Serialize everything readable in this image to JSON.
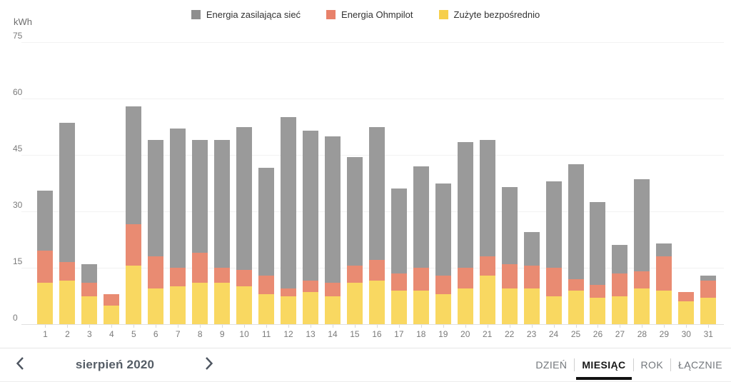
{
  "legend": [
    {
      "key": "grid",
      "label": "Energia zasilająca sieć",
      "color": "#8f8f8f"
    },
    {
      "key": "ohmpilot",
      "label": "Energia Ohmpilot",
      "color": "#e8816a"
    },
    {
      "key": "direct",
      "label": "Zużyte bezpośrednio",
      "color": "#f6cf4b"
    }
  ],
  "chart_data": {
    "type": "bar",
    "stacked": true,
    "ylabel": "kWh",
    "xlabel": "",
    "categories": [
      1,
      2,
      3,
      4,
      5,
      6,
      7,
      8,
      9,
      10,
      11,
      12,
      13,
      14,
      15,
      16,
      17,
      18,
      19,
      20,
      21,
      22,
      23,
      24,
      25,
      26,
      27,
      28,
      29,
      30,
      31
    ],
    "series": [
      {
        "key": "direct",
        "name": "Zużyte bezpośrednio",
        "color": "#f9d861",
        "values": [
          11,
          11.5,
          7.5,
          5,
          15.5,
          9.5,
          10,
          11,
          11,
          10,
          8,
          7.5,
          8.5,
          7.5,
          11,
          11.5,
          9,
          9,
          8,
          9.5,
          13,
          9.5,
          9.5,
          7.5,
          9,
          7,
          7.5,
          9.5,
          9,
          6,
          7
        ]
      },
      {
        "key": "ohmpilot",
        "name": "Energia Ohmpilot",
        "color": "#e98b72",
        "values": [
          8.5,
          5,
          3.5,
          3,
          11,
          8.5,
          5,
          8,
          4,
          4.5,
          5,
          2,
          3,
          3.5,
          4.5,
          5.5,
          4.5,
          6,
          5,
          5.5,
          5,
          6.5,
          6,
          7.5,
          3,
          3.5,
          6,
          4.5,
          9,
          2.5,
          4.5
        ]
      },
      {
        "key": "grid",
        "name": "Energia zasilająca sieć",
        "color": "#9a9a9a",
        "values": [
          16,
          37,
          5,
          0,
          31.5,
          31,
          37,
          30,
          34,
          38,
          28.5,
          45.5,
          40,
          39,
          29,
          35.5,
          22.5,
          27,
          24.5,
          33.5,
          31,
          20.5,
          9,
          23,
          30.5,
          22,
          7.5,
          24.5,
          3.5,
          0,
          1.5
        ]
      }
    ],
    "yticks": [
      0,
      15,
      30,
      45,
      60,
      75
    ],
    "ylim": [
      0,
      75
    ],
    "grid": true,
    "legend_position": "top"
  },
  "footer": {
    "period_label": "sierpień 2020",
    "tabs": [
      {
        "key": "dzien",
        "label": "DZIEŃ",
        "active": false
      },
      {
        "key": "miesiac",
        "label": "MIESIĄC",
        "active": true
      },
      {
        "key": "rok",
        "label": "ROK",
        "active": false
      },
      {
        "key": "lacznie",
        "label": "ŁĄCZNIE",
        "active": false
      }
    ]
  }
}
